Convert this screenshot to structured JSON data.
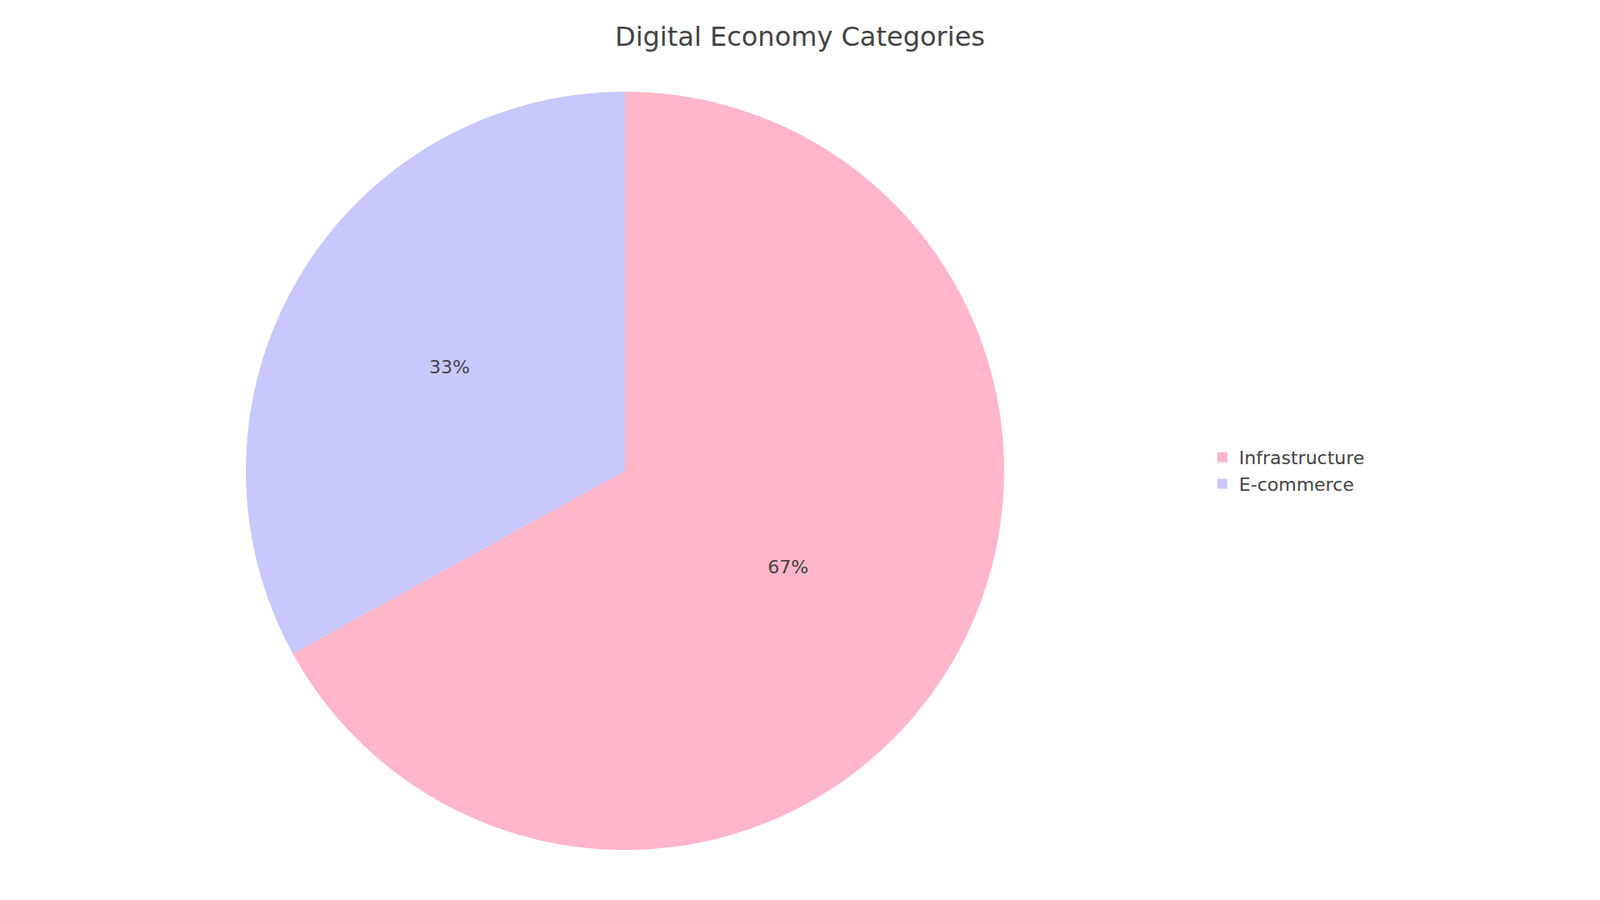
{
  "chart_data": {
    "type": "pie",
    "title": "Digital Economy Categories",
    "categories": [
      "Infrastructure",
      "E-commerce"
    ],
    "values": [
      67,
      33
    ],
    "value_labels": [
      "67%",
      "33%"
    ],
    "colors": [
      "#FFB6C8",
      "#C8C8FF"
    ],
    "data_labels": true,
    "legend": "right"
  }
}
